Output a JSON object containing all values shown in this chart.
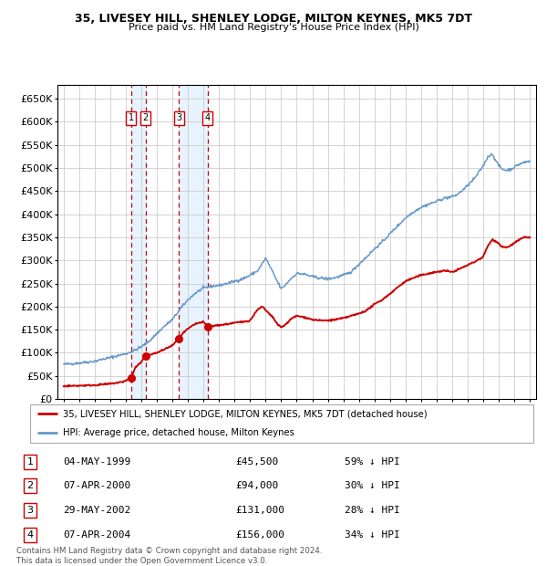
{
  "title": "35, LIVESEY HILL, SHENLEY LODGE, MILTON KEYNES, MK5 7DT",
  "subtitle": "Price paid vs. HM Land Registry's House Price Index (HPI)",
  "xlim": [
    1994.6,
    2025.4
  ],
  "ylim": [
    0,
    680000
  ],
  "yticks": [
    0,
    50000,
    100000,
    150000,
    200000,
    250000,
    300000,
    350000,
    400000,
    450000,
    500000,
    550000,
    600000,
    650000
  ],
  "transactions": [
    {
      "num": 1,
      "date": "04-MAY-1999",
      "year": 1999.35,
      "price": 45500,
      "pct": "59%",
      "dir": "↓"
    },
    {
      "num": 2,
      "date": "07-APR-2000",
      "year": 2000.27,
      "price": 94000,
      "pct": "30%",
      "dir": "↓"
    },
    {
      "num": 3,
      "date": "29-MAY-2002",
      "year": 2002.41,
      "price": 131000,
      "pct": "28%",
      "dir": "↓"
    },
    {
      "num": 4,
      "date": "07-APR-2004",
      "year": 2004.27,
      "price": 156000,
      "pct": "34%",
      "dir": "↓"
    }
  ],
  "red_line_color": "#cc0000",
  "blue_line_color": "#6699cc",
  "grid_color": "#cccccc",
  "shade_color": "#ddeeff",
  "dashed_color": "#cc0000",
  "legend_label_red": "35, LIVESEY HILL, SHENLEY LODGE, MILTON KEYNES, MK5 7DT (detached house)",
  "legend_label_blue": "HPI: Average price, detached house, Milton Keynes",
  "footer": "Contains HM Land Registry data © Crown copyright and database right 2024.\nThis data is licensed under the Open Government Licence v3.0.",
  "background_color": "#ffffff",
  "hpi_anchors": [
    [
      1995.0,
      75000
    ],
    [
      1996.0,
      78000
    ],
    [
      1997.0,
      82000
    ],
    [
      1998.0,
      90000
    ],
    [
      1999.0,
      98000
    ],
    [
      1999.5,
      104000
    ],
    [
      2000.0,
      113000
    ],
    [
      2000.5,
      125000
    ],
    [
      2001.0,
      142000
    ],
    [
      2001.5,
      158000
    ],
    [
      2002.0,
      172000
    ],
    [
      2002.5,
      195000
    ],
    [
      2003.0,
      215000
    ],
    [
      2003.5,
      230000
    ],
    [
      2004.0,
      240000
    ],
    [
      2004.5,
      244000
    ],
    [
      2005.0,
      246000
    ],
    [
      2005.5,
      250000
    ],
    [
      2006.0,
      255000
    ],
    [
      2006.5,
      260000
    ],
    [
      2007.0,
      268000
    ],
    [
      2007.5,
      278000
    ],
    [
      2008.0,
      305000
    ],
    [
      2008.3,
      285000
    ],
    [
      2008.7,
      258000
    ],
    [
      2009.0,
      238000
    ],
    [
      2009.3,
      248000
    ],
    [
      2009.6,
      260000
    ],
    [
      2010.0,
      272000
    ],
    [
      2010.5,
      270000
    ],
    [
      2011.0,
      265000
    ],
    [
      2011.5,
      262000
    ],
    [
      2012.0,
      260000
    ],
    [
      2012.5,
      263000
    ],
    [
      2013.0,
      268000
    ],
    [
      2013.5,
      275000
    ],
    [
      2014.0,
      292000
    ],
    [
      2014.5,
      308000
    ],
    [
      2015.0,
      325000
    ],
    [
      2015.5,
      340000
    ],
    [
      2016.0,
      358000
    ],
    [
      2016.5,
      375000
    ],
    [
      2017.0,
      392000
    ],
    [
      2017.5,
      405000
    ],
    [
      2018.0,
      415000
    ],
    [
      2018.5,
      422000
    ],
    [
      2019.0,
      428000
    ],
    [
      2019.5,
      435000
    ],
    [
      2020.0,
      438000
    ],
    [
      2020.3,
      442000
    ],
    [
      2020.6,
      450000
    ],
    [
      2021.0,
      462000
    ],
    [
      2021.5,
      480000
    ],
    [
      2022.0,
      505000
    ],
    [
      2022.3,
      525000
    ],
    [
      2022.6,
      530000
    ],
    [
      2022.9,
      510000
    ],
    [
      2023.2,
      498000
    ],
    [
      2023.5,
      495000
    ],
    [
      2023.8,
      498000
    ],
    [
      2024.0,
      502000
    ],
    [
      2024.3,
      508000
    ],
    [
      2024.6,
      512000
    ],
    [
      2025.0,
      515000
    ]
  ],
  "red_anchors": [
    [
      1995.0,
      28000
    ],
    [
      1996.0,
      29000
    ],
    [
      1997.0,
      30000
    ],
    [
      1998.0,
      33000
    ],
    [
      1998.8,
      37000
    ],
    [
      1999.35,
      45500
    ],
    [
      1999.6,
      68000
    ],
    [
      2000.0,
      80000
    ],
    [
      2000.27,
      94000
    ],
    [
      2000.5,
      96000
    ],
    [
      2001.0,
      100000
    ],
    [
      2001.5,
      108000
    ],
    [
      2002.0,
      116000
    ],
    [
      2002.41,
      131000
    ],
    [
      2002.7,
      143000
    ],
    [
      2003.0,
      152000
    ],
    [
      2003.5,
      163000
    ],
    [
      2004.0,
      167000
    ],
    [
      2004.27,
      156000
    ],
    [
      2004.6,
      158000
    ],
    [
      2005.0,
      160000
    ],
    [
      2005.5,
      162000
    ],
    [
      2006.0,
      165000
    ],
    [
      2006.5,
      167000
    ],
    [
      2007.0,
      170000
    ],
    [
      2007.5,
      195000
    ],
    [
      2007.8,
      200000
    ],
    [
      2008.0,
      192000
    ],
    [
      2008.5,
      175000
    ],
    [
      2008.8,
      160000
    ],
    [
      2009.0,
      155000
    ],
    [
      2009.3,
      162000
    ],
    [
      2009.7,
      175000
    ],
    [
      2010.0,
      180000
    ],
    [
      2010.5,
      177000
    ],
    [
      2011.0,
      172000
    ],
    [
      2011.5,
      170000
    ],
    [
      2012.0,
      170000
    ],
    [
      2012.5,
      172000
    ],
    [
      2013.0,
      175000
    ],
    [
      2013.5,
      180000
    ],
    [
      2014.0,
      185000
    ],
    [
      2014.5,
      192000
    ],
    [
      2015.0,
      205000
    ],
    [
      2015.5,
      215000
    ],
    [
      2016.0,
      228000
    ],
    [
      2016.5,
      242000
    ],
    [
      2017.0,
      255000
    ],
    [
      2017.5,
      262000
    ],
    [
      2018.0,
      268000
    ],
    [
      2018.5,
      272000
    ],
    [
      2019.0,
      275000
    ],
    [
      2019.5,
      278000
    ],
    [
      2020.0,
      275000
    ],
    [
      2020.5,
      282000
    ],
    [
      2021.0,
      290000
    ],
    [
      2021.5,
      298000
    ],
    [
      2022.0,
      308000
    ],
    [
      2022.3,
      332000
    ],
    [
      2022.6,
      345000
    ],
    [
      2022.9,
      340000
    ],
    [
      2023.2,
      330000
    ],
    [
      2023.5,
      328000
    ],
    [
      2023.8,
      333000
    ],
    [
      2024.0,
      338000
    ],
    [
      2024.3,
      344000
    ],
    [
      2024.6,
      350000
    ],
    [
      2025.0,
      350000
    ]
  ]
}
